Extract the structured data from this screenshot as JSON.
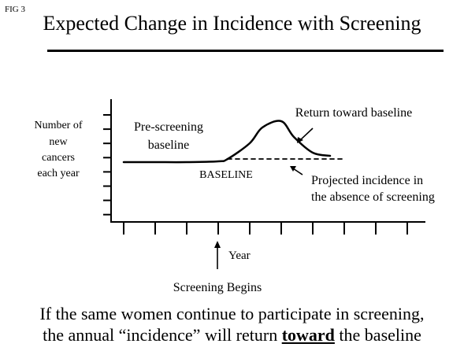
{
  "fig_label": "FIG 3",
  "title": "Expected Change in Incidence with Screening",
  "chart_data": {
    "type": "line",
    "ylabel": [
      "Number of",
      "new",
      "cancers",
      "each year"
    ],
    "xlabel": "Year",
    "y_tick_count": 8,
    "x_tick_count": 10,
    "series": [
      {
        "name": "",
        "style": "solid",
        "x": [
          0,
          1,
          2,
          3,
          3.3,
          4,
          4.4,
          5,
          5.4,
          6,
          6.55
        ],
        "y": [
          0,
          0,
          0,
          0.05,
          0.2,
          1.2,
          2.2,
          2.6,
          1.6,
          0.6,
          0.4
        ]
      },
      {
        "name": "",
        "style": "dashed",
        "x": [
          3.3,
          7
        ],
        "y": [
          0.2,
          0.2
        ]
      }
    ],
    "annotations": {
      "pre_screening": [
        "Pre-screening",
        "baseline"
      ],
      "baseline": "BASELINE",
      "return_toward": "Return toward baseline",
      "projected": [
        "Projected incidence in",
        "the absence of screening"
      ],
      "screening_begins": "Screening Begins"
    }
  },
  "caption": {
    "line1": "If the same women continue to participate in screening,",
    "line2_before": "the annual “incidence” will return ",
    "line2_emph": "toward",
    "line2_after": " the baseline"
  }
}
